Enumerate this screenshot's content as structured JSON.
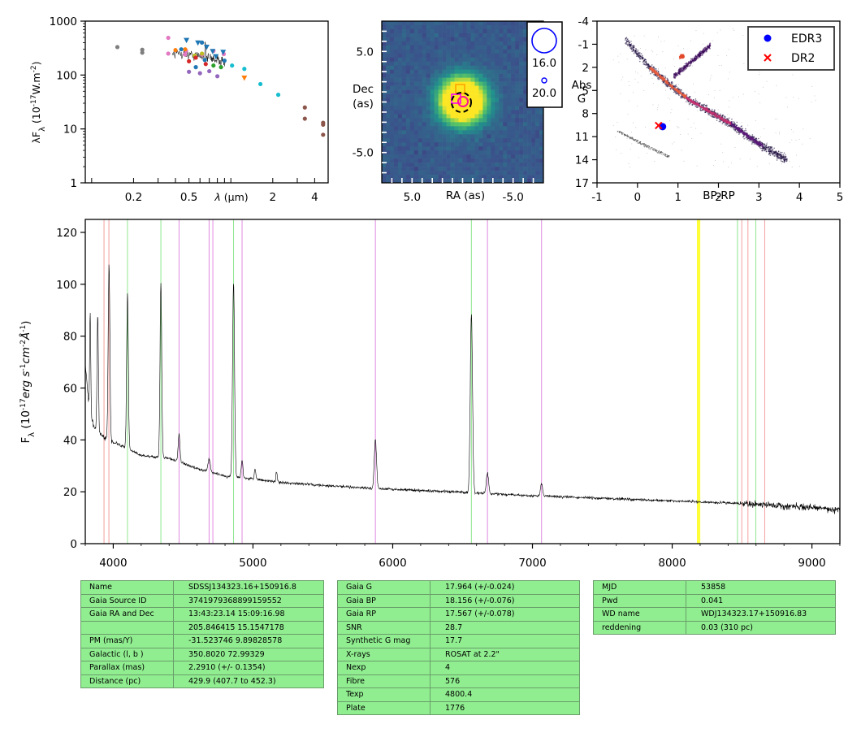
{
  "sed": {
    "type": "scatter",
    "ylabel_html": "λF<tspan baseline-shift='sub' font-size='10'>λ</tspan> (10<tspan baseline-shift='super' font-size='9'>-17</tspan>W.m<tspan baseline-shift='super' font-size='9'>-2</tspan>)",
    "xlabel_html": "λ (μm)",
    "yticks": [
      {
        "v": 1,
        "l": "1"
      },
      {
        "v": 10,
        "l": "10"
      },
      {
        "v": 100,
        "l": "100"
      },
      {
        "v": 1000,
        "l": "1000"
      }
    ],
    "xticks": [
      {
        "v": 0.2,
        "l": "0.2"
      },
      {
        "v": 0.5,
        "l": "0.5"
      },
      {
        "v": 2,
        "l": "2"
      },
      {
        "v": 4,
        "l": "4"
      }
    ],
    "xlim": [
      0.09,
      5.0
    ],
    "ylim": [
      1,
      1000
    ],
    "xscale": "log",
    "yscale": "log",
    "points": [
      {
        "x": 0.153,
        "y": 330,
        "c": "#7f7f7f"
      },
      {
        "x": 0.231,
        "y": 295,
        "c": "#7f7f7f"
      },
      {
        "x": 0.231,
        "y": 260,
        "c": "#7f7f7f"
      },
      {
        "x": 0.355,
        "y": 490,
        "c": "#e377c2"
      },
      {
        "x": 0.355,
        "y": 250,
        "c": "#e377c2"
      },
      {
        "x": 0.468,
        "y": 240,
        "c": "#e377c2"
      },
      {
        "x": 0.477,
        "y": 280,
        "c": "#e377c2"
      },
      {
        "x": 0.62,
        "y": 240,
        "c": "#e377c2"
      },
      {
        "x": 0.75,
        "y": 280,
        "c": "#e377c2"
      },
      {
        "x": 0.89,
        "y": 245,
        "c": "#e377c2"
      },
      {
        "x": 0.4,
        "y": 290,
        "c": "#ff7f0e"
      },
      {
        "x": 0.47,
        "y": 300,
        "c": "#ff7f0e"
      },
      {
        "x": 0.55,
        "y": 230,
        "c": "#bcbd22"
      },
      {
        "x": 0.62,
        "y": 250,
        "c": "#bcbd22"
      },
      {
        "x": 0.5,
        "y": 180,
        "c": "#d62728"
      },
      {
        "x": 0.56,
        "y": 210,
        "c": "#d62728"
      },
      {
        "x": 0.66,
        "y": 160,
        "c": "#d62728"
      },
      {
        "x": 0.5,
        "y": 115,
        "c": "#9467bd"
      },
      {
        "x": 0.6,
        "y": 108,
        "c": "#9467bd"
      },
      {
        "x": 0.7,
        "y": 118,
        "c": "#9467bd"
      },
      {
        "x": 0.8,
        "y": 95,
        "c": "#9467bd"
      },
      {
        "x": 0.75,
        "y": 150,
        "c": "#2ca02c"
      },
      {
        "x": 0.85,
        "y": 140,
        "c": "#2ca02c"
      },
      {
        "x": 0.56,
        "y": 140,
        "c": "#1f77b4"
      },
      {
        "x": 0.62,
        "y": 400,
        "c": "#1f77b4"
      },
      {
        "x": 0.44,
        "y": 300,
        "c": "#1f77b4"
      },
      {
        "x": 0.65,
        "y": 190,
        "c": "#1f77b4"
      },
      {
        "x": 0.9,
        "y": 185,
        "c": "#1f77b4"
      },
      {
        "x": 1.02,
        "y": 150,
        "c": "#17becf"
      },
      {
        "x": 1.25,
        "y": 130,
        "c": "#17becf"
      },
      {
        "x": 1.63,
        "y": 68,
        "c": "#17becf"
      },
      {
        "x": 2.19,
        "y": 43,
        "c": "#17becf"
      },
      {
        "x": 3.4,
        "y": 25,
        "c": "#8c564b"
      },
      {
        "x": 3.4,
        "y": 15.5,
        "c": "#8c564b"
      },
      {
        "x": 4.6,
        "y": 13,
        "c": "#8c564b"
      },
      {
        "x": 4.6,
        "y": 12,
        "c": "#8c564b"
      },
      {
        "x": 4.6,
        "y": 7.8,
        "c": "#8c564b"
      }
    ],
    "tri": [
      {
        "x": 0.48,
        "y": 440,
        "c": "#1f77b4"
      },
      {
        "x": 0.58,
        "y": 395,
        "c": "#1f77b4"
      },
      {
        "x": 0.67,
        "y": 330,
        "c": "#1f77b4"
      },
      {
        "x": 0.74,
        "y": 275,
        "c": "#1f77b4"
      },
      {
        "x": 0.88,
        "y": 265,
        "c": "#1f77b4"
      },
      {
        "x": 0.78,
        "y": 220,
        "c": "#1f77b4"
      },
      {
        "x": 1.25,
        "y": 88,
        "c": "#ff7f0e"
      }
    ]
  },
  "image": {
    "xlabel": "RA (as)",
    "ylabel1": "Dec",
    "ylabel2": "(as)",
    "xticks": [
      {
        "v": 5,
        "l": "5.0"
      },
      {
        "v": -5,
        "l": "-5.0"
      }
    ],
    "yticks": [
      {
        "v": 5,
        "l": "5.0"
      },
      {
        "v": -5,
        "l": "-5.0"
      }
    ],
    "xlim": [
      8,
      -8
    ],
    "ylim": [
      -8,
      8
    ],
    "legend": [
      "16.0",
      "20.0"
    ]
  },
  "hrd": {
    "type": "scatter",
    "xlabel": "BP-RP",
    "ylabel1": "Abs",
    "ylabel2": "G",
    "xlim": [
      -1,
      5
    ],
    "ylim": [
      17,
      -4
    ],
    "xticks": [
      {
        "v": -1,
        "l": "-1"
      },
      {
        "v": 0,
        "l": "0"
      },
      {
        "v": 1,
        "l": "1"
      },
      {
        "v": 2,
        "l": "2"
      },
      {
        "v": 3,
        "l": "3"
      },
      {
        "v": 4,
        "l": "4"
      },
      {
        "v": 5,
        "l": "5"
      }
    ],
    "yticks": [
      {
        "v": -4,
        "l": "-4"
      },
      {
        "v": -1,
        "l": "-1"
      },
      {
        "v": 2,
        "l": "2"
      },
      {
        "v": 5,
        "l": "5"
      },
      {
        "v": 8,
        "l": "8"
      },
      {
        "v": 11,
        "l": "11"
      },
      {
        "v": 14,
        "l": "14"
      },
      {
        "v": 17,
        "l": "17"
      }
    ],
    "legend": [
      {
        "label": "EDR3",
        "color": "#0000ff",
        "marker": "circle"
      },
      {
        "label": "DR2",
        "color": "#ff0000",
        "marker": "x"
      }
    ],
    "edr3": {
      "x": 0.62,
      "y": 9.7
    },
    "dr2": {
      "x": 0.52,
      "y": 9.55
    }
  },
  "spectrum": {
    "type": "line",
    "ylabel_html": "F<tspan baseline-shift='sub' font-size='10'>λ</tspan> (10<tspan baseline-shift='super' font-size='9'>-17</tspan><tspan font-style='italic'>erg s</tspan><tspan baseline-shift='super' font-size='9'>-1</tspan><tspan font-style='italic'>cm</tspan><tspan baseline-shift='super' font-size='9'>-2</tspan><tspan font-style='italic'>Å</tspan><tspan baseline-shift='super' font-size='9'>-1</tspan>)",
    "xlim": [
      3800,
      9200
    ],
    "ylim": [
      0,
      125
    ],
    "xticks": [
      {
        "v": 4000,
        "l": "4000"
      },
      {
        "v": 5000,
        "l": "5000"
      },
      {
        "v": 6000,
        "l": "6000"
      },
      {
        "v": 7000,
        "l": "7000"
      },
      {
        "v": 8000,
        "l": "8000"
      },
      {
        "v": 9000,
        "l": "9000"
      }
    ],
    "yticks": [
      {
        "v": 0,
        "l": "0"
      },
      {
        "v": 20,
        "l": "20"
      },
      {
        "v": 40,
        "l": "40"
      },
      {
        "v": 60,
        "l": "60"
      },
      {
        "v": 80,
        "l": "80"
      },
      {
        "v": 100,
        "l": "100"
      },
      {
        "v": 120,
        "l": "120"
      }
    ],
    "vlines": [
      {
        "x": 3934,
        "c": "#f4a0a0"
      },
      {
        "x": 3969,
        "c": "#f4a0a0"
      },
      {
        "x": 4102,
        "c": "#8ee68e"
      },
      {
        "x": 4341,
        "c": "#8ee68e"
      },
      {
        "x": 4471,
        "c": "#e08ae0"
      },
      {
        "x": 4686,
        "c": "#e08ae0"
      },
      {
        "x": 4713,
        "c": "#e08ae0"
      },
      {
        "x": 4861,
        "c": "#8ee68e"
      },
      {
        "x": 4922,
        "c": "#e08ae0"
      },
      {
        "x": 5876,
        "c": "#e08ae0"
      },
      {
        "x": 6563,
        "c": "#8ee68e"
      },
      {
        "x": 6678,
        "c": "#e08ae0"
      },
      {
        "x": 7065,
        "c": "#e08ae0"
      },
      {
        "x": 8183,
        "c": "#ffff33"
      },
      {
        "x": 8195,
        "c": "#ffff33"
      },
      {
        "x": 8467,
        "c": "#8ee68e"
      },
      {
        "x": 8498,
        "c": "#f4a0a0"
      },
      {
        "x": 8542,
        "c": "#f4a0a0"
      },
      {
        "x": 8598,
        "c": "#8ee68e"
      },
      {
        "x": 8662,
        "c": "#f4a0a0"
      }
    ],
    "continuum": [
      [
        3800,
        70
      ],
      [
        3830,
        50
      ],
      [
        3870,
        44
      ],
      [
        3950,
        40
      ],
      [
        4050,
        38
      ],
      [
        4200,
        34
      ],
      [
        4400,
        33
      ],
      [
        4600,
        29
      ],
      [
        4800,
        26
      ],
      [
        5000,
        25
      ],
      [
        5200,
        23.5
      ],
      [
        5500,
        22.5
      ],
      [
        5800,
        21.5
      ],
      [
        6200,
        20.5
      ],
      [
        6600,
        19.5
      ],
      [
        7000,
        18.5
      ],
      [
        7500,
        17.5
      ],
      [
        8000,
        16.5
      ],
      [
        8500,
        15.5
      ],
      [
        9000,
        14
      ],
      [
        9200,
        13
      ]
    ],
    "lines": [
      {
        "x": 3835,
        "h": 40,
        "w": 4
      },
      {
        "x": 3889,
        "h": 45,
        "w": 5
      },
      {
        "x": 3970,
        "h": 68,
        "w": 6
      },
      {
        "x": 4102,
        "h": 60,
        "w": 6
      },
      {
        "x": 4341,
        "h": 67,
        "w": 6
      },
      {
        "x": 4471,
        "h": 11,
        "w": 6
      },
      {
        "x": 4686,
        "h": 5,
        "w": 8
      },
      {
        "x": 4861,
        "h": 75,
        "w": 7
      },
      {
        "x": 4922,
        "h": 7,
        "w": 6
      },
      {
        "x": 5015,
        "h": 4,
        "w": 5
      },
      {
        "x": 5169,
        "h": 4,
        "w": 5
      },
      {
        "x": 5876,
        "h": 19,
        "w": 8
      },
      {
        "x": 6563,
        "h": 69,
        "w": 8
      },
      {
        "x": 6678,
        "h": 8,
        "w": 8
      },
      {
        "x": 7065,
        "h": 5,
        "w": 7
      }
    ]
  },
  "table1": [
    {
      "k": "Name",
      "v": "SDSSJ134323.16+150916.8"
    },
    {
      "k": "Gaia Source ID",
      "v": "3741979368899159552"
    },
    {
      "k": "Gaia RA and Dec",
      "v": "13:43:23.14    15:09:16.98"
    },
    {
      "k": "",
      "v": "205.846415    15.1547178"
    },
    {
      "k": "PM (mas/Y)",
      "v": "-31.523746    9.89828578"
    },
    {
      "k": "Galactic (l, b )",
      "v": "350.8020    72.99329"
    },
    {
      "k": "Parallax (mas)",
      "v": "2.2910 (+/- 0.1354)"
    },
    {
      "k": "Distance (pc)",
      "v": "429.9 (407.7 to 452.3)"
    }
  ],
  "table2": [
    {
      "k": "Gaia G",
      "v": "17.964 (+/-0.024)"
    },
    {
      "k": "Gaia BP",
      "v": "18.156 (+/-0.076)"
    },
    {
      "k": "Gaia RP",
      "v": "17.567 (+/-0.078)"
    },
    {
      "k": "SNR",
      "v": "28.7"
    },
    {
      "k": "Synthetic G mag",
      "v": "17.7"
    },
    {
      "k": "X-rays",
      "v": "ROSAT at 2.2\""
    },
    {
      "k": "Nexp",
      "v": "4"
    },
    {
      "k": "Fibre",
      "v": "576"
    },
    {
      "k": "Texp",
      "v": "4800.4"
    },
    {
      "k": "Plate",
      "v": "1776"
    }
  ],
  "table3": [
    {
      "k": "MJD",
      "v": "53858"
    },
    {
      "k": "Pwd",
      "v": "0.041"
    },
    {
      "k": "WD name",
      "v": "WDJ134323.17+150916.83"
    },
    {
      "k": "reddening",
      "v": "0.03 (310 pc)"
    }
  ]
}
